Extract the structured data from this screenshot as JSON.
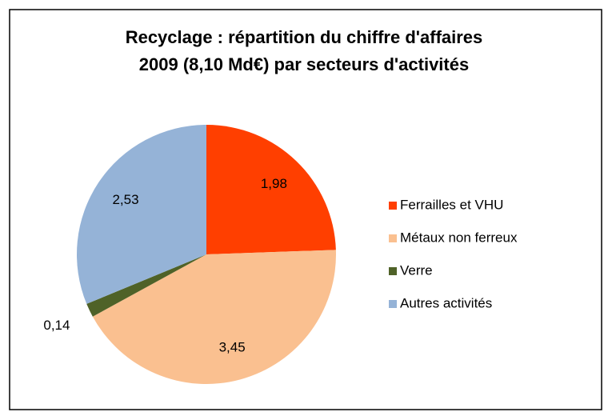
{
  "chart_data": {
    "type": "pie",
    "title": [
      "Recyclage : répartition du chiffre d'affaires",
      "2009 (8,10 Md€) par secteurs d'activités"
    ],
    "categories": [
      "Ferrailles et VHU",
      "Métaux non ferreux",
      "Verre",
      "Autres activités"
    ],
    "values": [
      1.98,
      3.45,
      0.14,
      2.53
    ],
    "value_labels": [
      "1,98",
      "3,45",
      "0,14",
      "2,53"
    ],
    "colors": [
      "#ff3f00",
      "#fac090",
      "#4f6228",
      "#95b3d7"
    ],
    "legend": "right"
  }
}
